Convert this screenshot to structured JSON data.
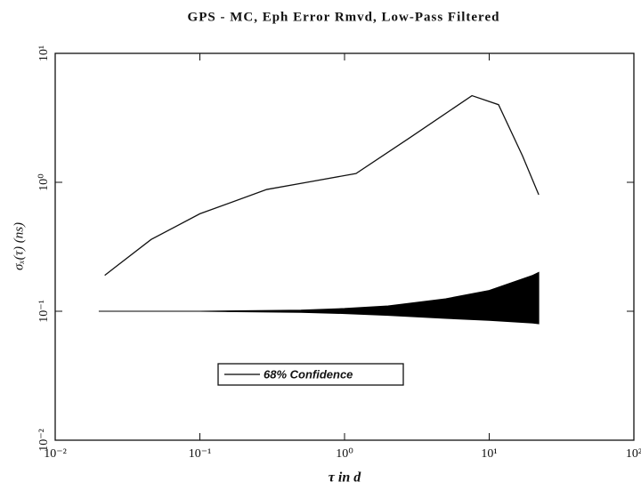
{
  "chart_data": {
    "type": "line",
    "title": "GPS - MC, Eph Error Rmvd, Low-Pass Filtered",
    "xlabel": "τ in d",
    "ylabel": "σₓ(τ) (ns)",
    "xscale": "log",
    "yscale": "log",
    "xlim": [
      0.01,
      100
    ],
    "ylim": [
      0.01,
      10
    ],
    "xticks": [
      {
        "value": 0.01,
        "label": "10⁻²"
      },
      {
        "value": 0.1,
        "label": "10⁻¹"
      },
      {
        "value": 1,
        "label": "10⁰"
      },
      {
        "value": 10,
        "label": "10¹"
      },
      {
        "value": 100,
        "label": "10²"
      }
    ],
    "yticks": [
      {
        "value": 0.01,
        "label": "10⁻²"
      },
      {
        "value": 0.1,
        "label": "10⁻¹"
      },
      {
        "value": 1,
        "label": "10⁰"
      },
      {
        "value": 10,
        "label": "10¹"
      }
    ],
    "series": [
      {
        "color": "#111111",
        "x": [
          0.022,
          0.046,
          0.1,
          0.29,
          0.55,
          1.2,
          2.8,
          7.6,
          11.6,
          17,
          22
        ],
        "values": [
          0.19,
          0.36,
          0.57,
          0.88,
          1.0,
          1.17,
          2.2,
          4.7,
          4.0,
          1.6,
          0.8
        ]
      }
    ],
    "band": {
      "name": "68% Confidence",
      "color": "#000000",
      "x": [
        0.02,
        0.1,
        0.5,
        1,
        2,
        5,
        10,
        20,
        22
      ],
      "upper": [
        0.1,
        0.1,
        0.102,
        0.105,
        0.11,
        0.125,
        0.145,
        0.19,
        0.2
      ],
      "lower": [
        0.1,
        0.1,
        0.098,
        0.096,
        0.093,
        0.088,
        0.085,
        0.081,
        0.08
      ]
    }
  }
}
